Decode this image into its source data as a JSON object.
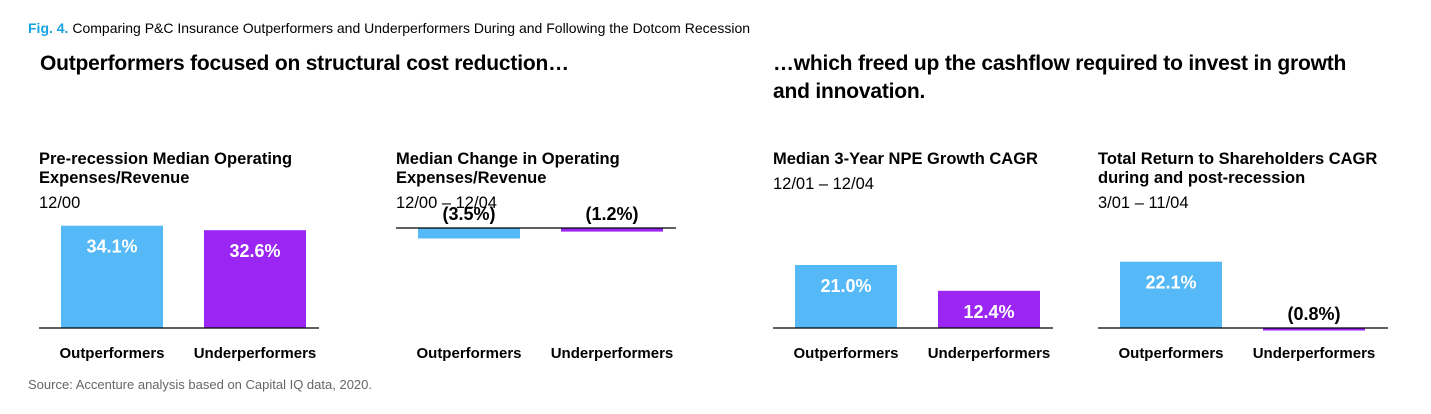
{
  "figure": {
    "label": "Fig. 4.",
    "caption": "Comparing P&C Insurance Outperformers and Underperformers During and Following the Dotcom Recession"
  },
  "headlines": {
    "left": "Outperformers focused on structural cost reduction…",
    "right": "…which freed up the cashflow required to invest in growth and innovation."
  },
  "source": "Source: Accenture analysis based on Capital IQ data, 2020.",
  "colors": {
    "outperformers": "#55b8f7",
    "underperformers": "#9b26f4",
    "accent": "#17a2e0"
  },
  "chart_data": [
    {
      "type": "bar",
      "title": "Pre-recession Median Operating Expenses/Revenue",
      "subtitle": "12/00",
      "categories": [
        "Outperformers",
        "Underperformers"
      ],
      "values": [
        34.1,
        32.6
      ],
      "labels": [
        "34.1%",
        "32.6%"
      ],
      "baseline": "bottom"
    },
    {
      "type": "bar",
      "title": "Median Change in Operating Expenses/Revenue",
      "subtitle": "12/00 – 12/04",
      "categories": [
        "Outperformers",
        "Underperformers"
      ],
      "values": [
        -3.5,
        -1.2
      ],
      "labels": [
        "(3.5%)",
        "(1.2%)"
      ],
      "baseline": "top"
    },
    {
      "type": "bar",
      "title": "Median 3-Year NPE Growth CAGR",
      "subtitle": "12/01 – 12/04",
      "categories": [
        "Outperformers",
        "Underperformers"
      ],
      "values": [
        21.0,
        12.4
      ],
      "labels": [
        "21.0%",
        "12.4%"
      ],
      "baseline": "bottom"
    },
    {
      "type": "bar",
      "title": "Total Return to Shareholders CAGR during and post-recession",
      "subtitle": "3/01 – 11/04",
      "categories": [
        "Outperformers",
        "Underperformers"
      ],
      "values": [
        22.1,
        -0.8
      ],
      "labels": [
        "22.1%",
        "(0.8%)"
      ],
      "baseline": "bottom"
    }
  ]
}
